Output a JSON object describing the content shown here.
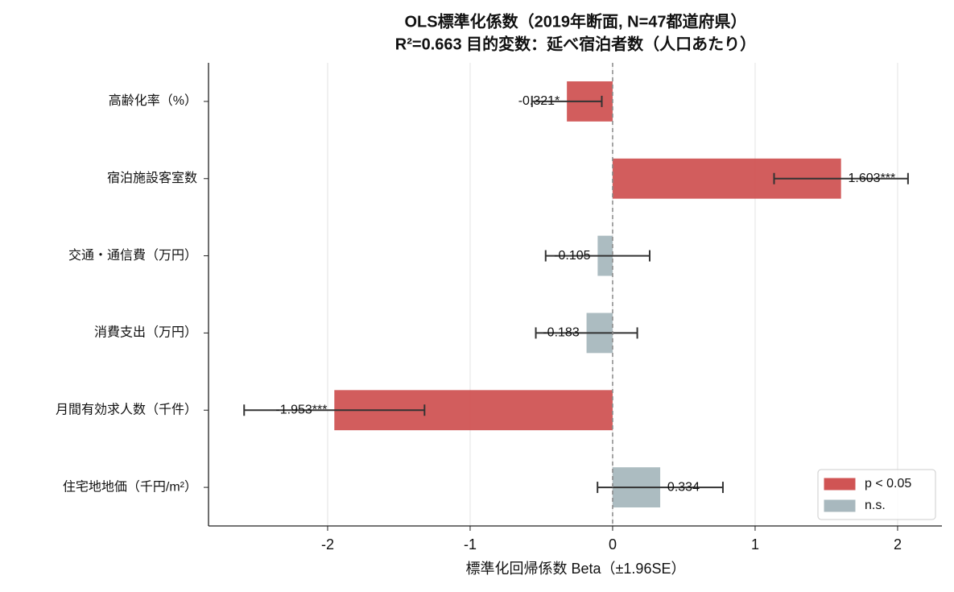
{
  "chart_data": {
    "type": "hbar",
    "title": [
      "OLS標準化係数（2019年断面, N=47都道府県）",
      "R²=0.663  目的変数：延べ宿泊者数（人口あたり）"
    ],
    "xlabel": "標準化回帰係数 Beta（±1.96SE）",
    "categories": [
      "高齢化率（%）",
      "宿泊施設客室数",
      "交通・通信費（万円）",
      "消費支出（万円）",
      "月間有効求人数（千件）",
      "住宅地地価（千円/m²）"
    ],
    "values": [
      -0.321,
      1.603,
      -0.105,
      -0.183,
      -1.953,
      0.334
    ],
    "value_labels": [
      "-0.321*",
      "1.603***",
      "-0.105",
      "-0.183",
      "-1.953***",
      "0.334"
    ],
    "errors": [
      0.245,
      0.47,
      0.365,
      0.356,
      0.633,
      0.44
    ],
    "colors": [
      "#d05454",
      "#d05454",
      "#a8b8be",
      "#a8b8be",
      "#d05454",
      "#a8b8be"
    ],
    "legend": [
      {
        "label": "p < 0.05",
        "color": "#d05454"
      },
      {
        "label": "n.s.",
        "color": "#a8b8be"
      }
    ],
    "legend_position": "lower right",
    "xlim": [
      -2.836,
      2.311
    ],
    "xticks": [
      -2,
      -1,
      0,
      1,
      2
    ],
    "grid": true
  }
}
